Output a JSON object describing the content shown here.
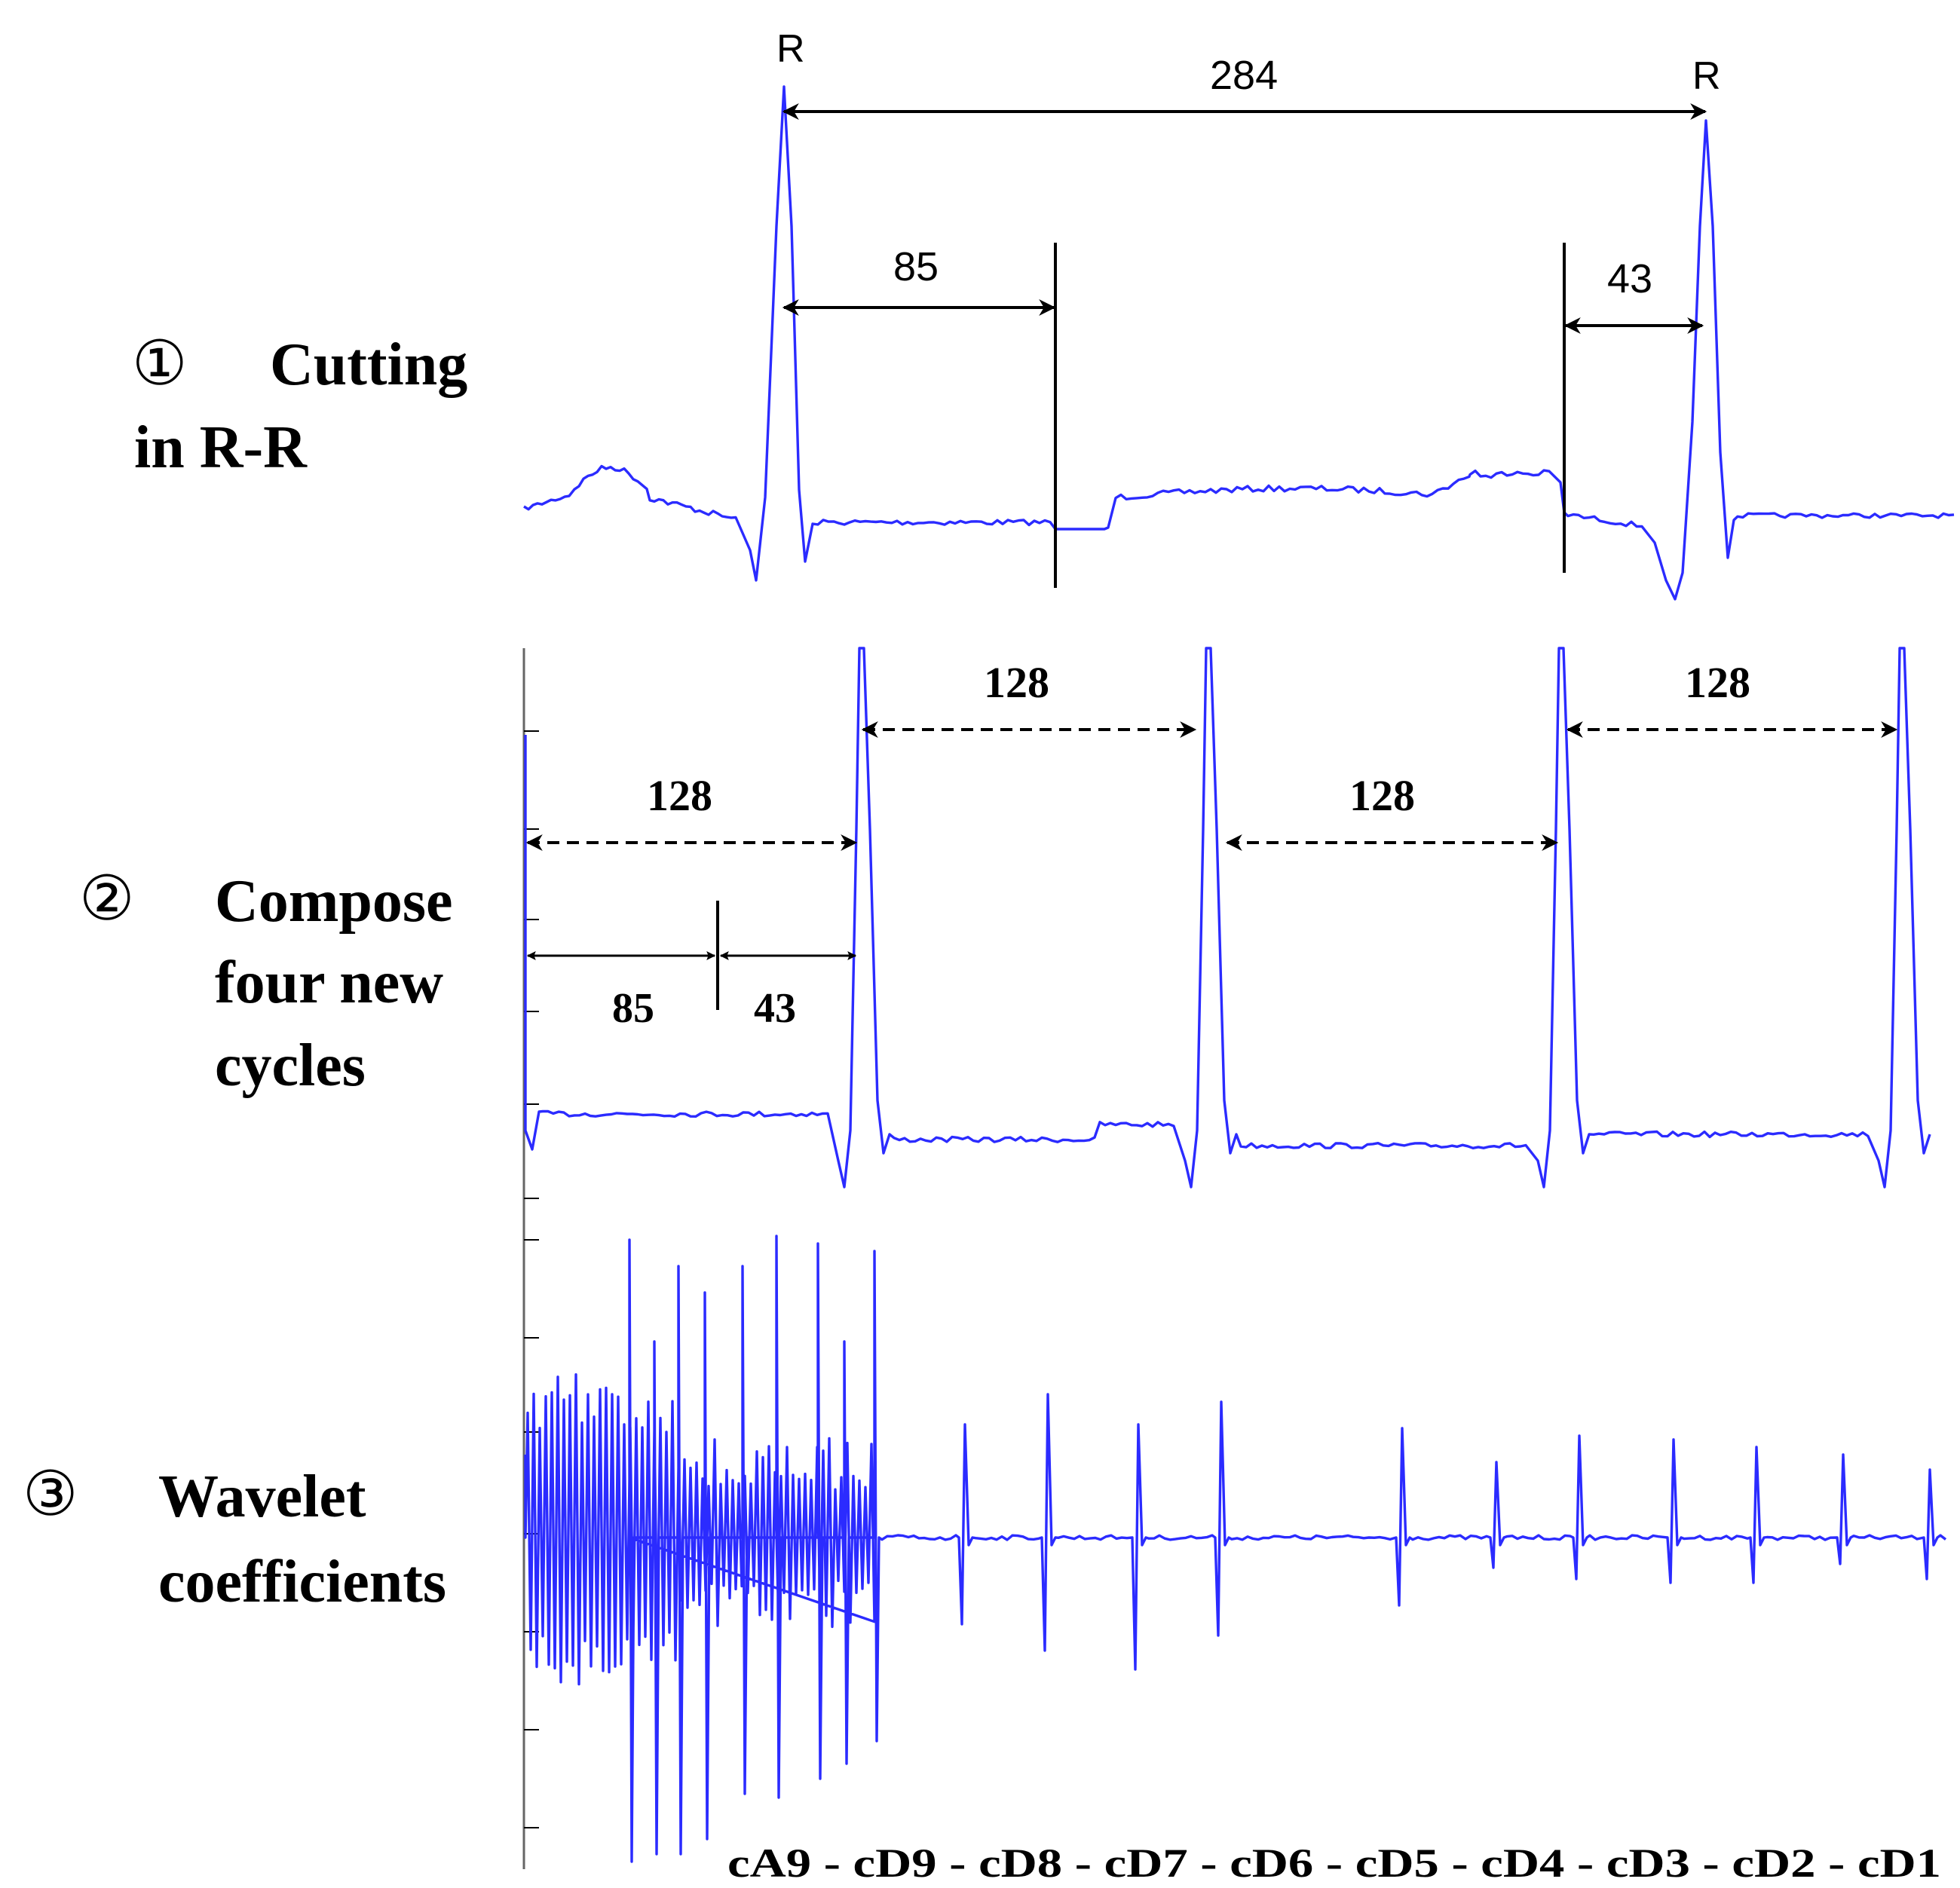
{
  "panel1": {
    "step_number": "①",
    "label_line1": "Cutting",
    "label_line2": "in R-R",
    "r_left": "R",
    "r_right": "R",
    "rr_interval": "284",
    "cut_after_r": "85",
    "cut_before_r": "43"
  },
  "panel2": {
    "step_number": "②",
    "label_line1": "Compose",
    "label_line2": "four new",
    "label_line3": "cycles",
    "cycle_1": "128",
    "cycle_2": "128",
    "cycle_3": "128",
    "cycle_4": "128",
    "part_a": "85",
    "part_b": "43"
  },
  "panel3": {
    "step_number": "③",
    "label_line1": "Wavelet",
    "label_line2": "coefficients",
    "bands_caption": "cA9 - cD9 - cD8 - cD7 - cD6 - cD5 - cD4 - cD3 - cD2 - cD1"
  },
  "colors": {
    "signal": "#2b2bff",
    "annotation": "#000000",
    "background": "#ffffff"
  }
}
